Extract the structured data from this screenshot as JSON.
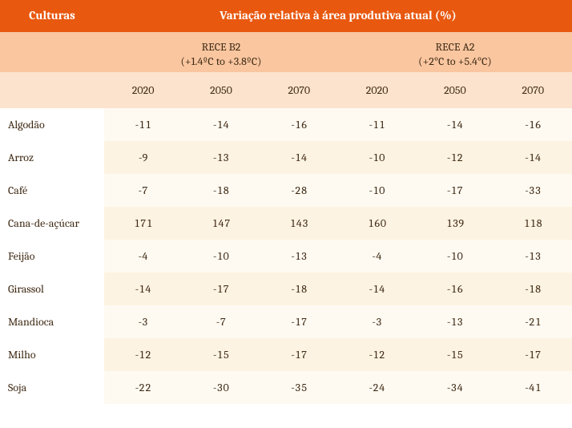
{
  "header": {
    "col1": "Culturas",
    "col_span": "Variação relativa à área produtiva atual (%)"
  },
  "scenarios": [
    {
      "title": "RECE B2",
      "sub": "(+1.4ºC to +3.8ºC)"
    },
    {
      "title": "RECE A2",
      "sub": "(+2°C to +5.4°C)"
    }
  ],
  "years": [
    "2020",
    "2050",
    "2070",
    "2020",
    "2050",
    "2070"
  ],
  "rows": [
    {
      "label": "Algodão",
      "vals": [
        "-11",
        "-14",
        "-16",
        "-11",
        "-14",
        "-16"
      ]
    },
    {
      "label": "Arroz",
      "vals": [
        "-9",
        "-13",
        "-14",
        "-10",
        "-12",
        "-14"
      ]
    },
    {
      "label": "Café",
      "vals": [
        "-7",
        "-18",
        "-28",
        "-10",
        "-17",
        "-33"
      ]
    },
    {
      "label": "Cana-de-açúcar",
      "vals": [
        "171",
        "147",
        "143",
        "160",
        "139",
        "118"
      ]
    },
    {
      "label": "Feijão",
      "vals": [
        "-4",
        "-10",
        "-13",
        "-4",
        "-10",
        "-13"
      ]
    },
    {
      "label": "Girassol",
      "vals": [
        "-14",
        "-17",
        "-18",
        "-14",
        "-16",
        "-18"
      ]
    },
    {
      "label": "Mandioca",
      "vals": [
        "-3",
        "-7",
        "-17",
        "-3",
        "-13",
        "-21"
      ]
    },
    {
      "label": "Milho",
      "vals": [
        "-12",
        "-15",
        "-17",
        "-12",
        "-15",
        "-17"
      ]
    },
    {
      "label": "Soja",
      "vals": [
        "-22",
        "-30",
        "-35",
        "-24",
        "-34",
        "-41"
      ]
    }
  ],
  "colors": {
    "header_bg": "#e8580f",
    "header_fg": "#ffffff",
    "scen_bg": "#f9c6a0",
    "years_bg": "#fce3cd",
    "row_odd_bg": "#fefaf2",
    "row_even_bg": "#fdf3e2",
    "text": "#3f2a14"
  }
}
